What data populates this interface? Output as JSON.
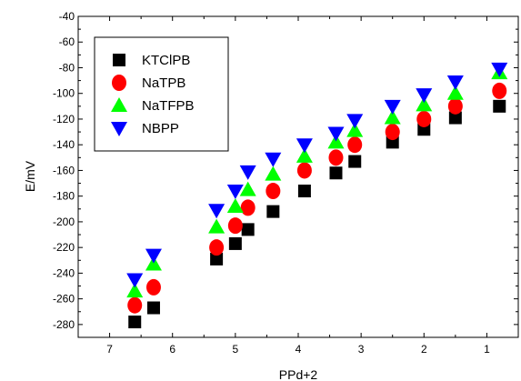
{
  "chart_data": {
    "type": "scatter",
    "xlabel": "PPd+2",
    "ylabel": "E/mV",
    "xlim": [
      7.5,
      0.5
    ],
    "ylim": [
      -290,
      -40
    ],
    "x_reversed": true,
    "x_ticks": [
      "7",
      "6",
      "5",
      "4",
      "3",
      "2",
      "1"
    ],
    "y_ticks": [
      "-40",
      "-60",
      "-80",
      "-100",
      "-120",
      "-140",
      "-160",
      "-180",
      "-200",
      "-220",
      "-240",
      "-260",
      "-280"
    ],
    "legend_position": "top-left",
    "series": [
      {
        "name": "KTClPB",
        "marker": "square",
        "color": "#000000",
        "points": [
          [
            6.6,
            -278
          ],
          [
            6.3,
            -267
          ],
          [
            5.3,
            -229
          ],
          [
            5.0,
            -217
          ],
          [
            4.8,
            -206
          ],
          [
            4.4,
            -192
          ],
          [
            3.9,
            -176
          ],
          [
            3.4,
            -162
          ],
          [
            3.1,
            -153
          ],
          [
            2.5,
            -138
          ],
          [
            2.0,
            -128
          ],
          [
            1.5,
            -119
          ],
          [
            0.8,
            -110
          ]
        ]
      },
      {
        "name": "NaTPB",
        "marker": "circle",
        "color": "#ff0000",
        "points": [
          [
            6.6,
            -265
          ],
          [
            6.3,
            -251
          ],
          [
            5.3,
            -220
          ],
          [
            5.0,
            -203
          ],
          [
            4.8,
            -189
          ],
          [
            4.4,
            -176
          ],
          [
            3.9,
            -160
          ],
          [
            3.4,
            -150
          ],
          [
            3.1,
            -140
          ],
          [
            2.5,
            -130
          ],
          [
            2.0,
            -120
          ],
          [
            1.5,
            -110
          ],
          [
            0.8,
            -98
          ]
        ]
      },
      {
        "name": "NaTFPB",
        "marker": "triangle-up",
        "color": "#00ff00",
        "points": [
          [
            6.6,
            -254
          ],
          [
            6.3,
            -233
          ],
          [
            5.3,
            -204
          ],
          [
            5.0,
            -188
          ],
          [
            4.8,
            -175
          ],
          [
            4.4,
            -163
          ],
          [
            3.9,
            -149
          ],
          [
            3.4,
            -138
          ],
          [
            3.1,
            -129
          ],
          [
            2.5,
            -119
          ],
          [
            2.0,
            -109
          ],
          [
            1.5,
            -100
          ],
          [
            0.8,
            -84
          ]
        ]
      },
      {
        "name": "NBPP",
        "marker": "triangle-down",
        "color": "#0000ff",
        "points": [
          [
            6.6,
            -245
          ],
          [
            6.3,
            -226
          ],
          [
            5.3,
            -191
          ],
          [
            5.0,
            -176
          ],
          [
            4.8,
            -161
          ],
          [
            4.4,
            -151
          ],
          [
            3.9,
            -140
          ],
          [
            3.4,
            -131
          ],
          [
            3.1,
            -121
          ],
          [
            2.5,
            -110
          ],
          [
            2.0,
            -101
          ],
          [
            1.5,
            -91
          ],
          [
            0.8,
            -81
          ]
        ]
      }
    ]
  }
}
